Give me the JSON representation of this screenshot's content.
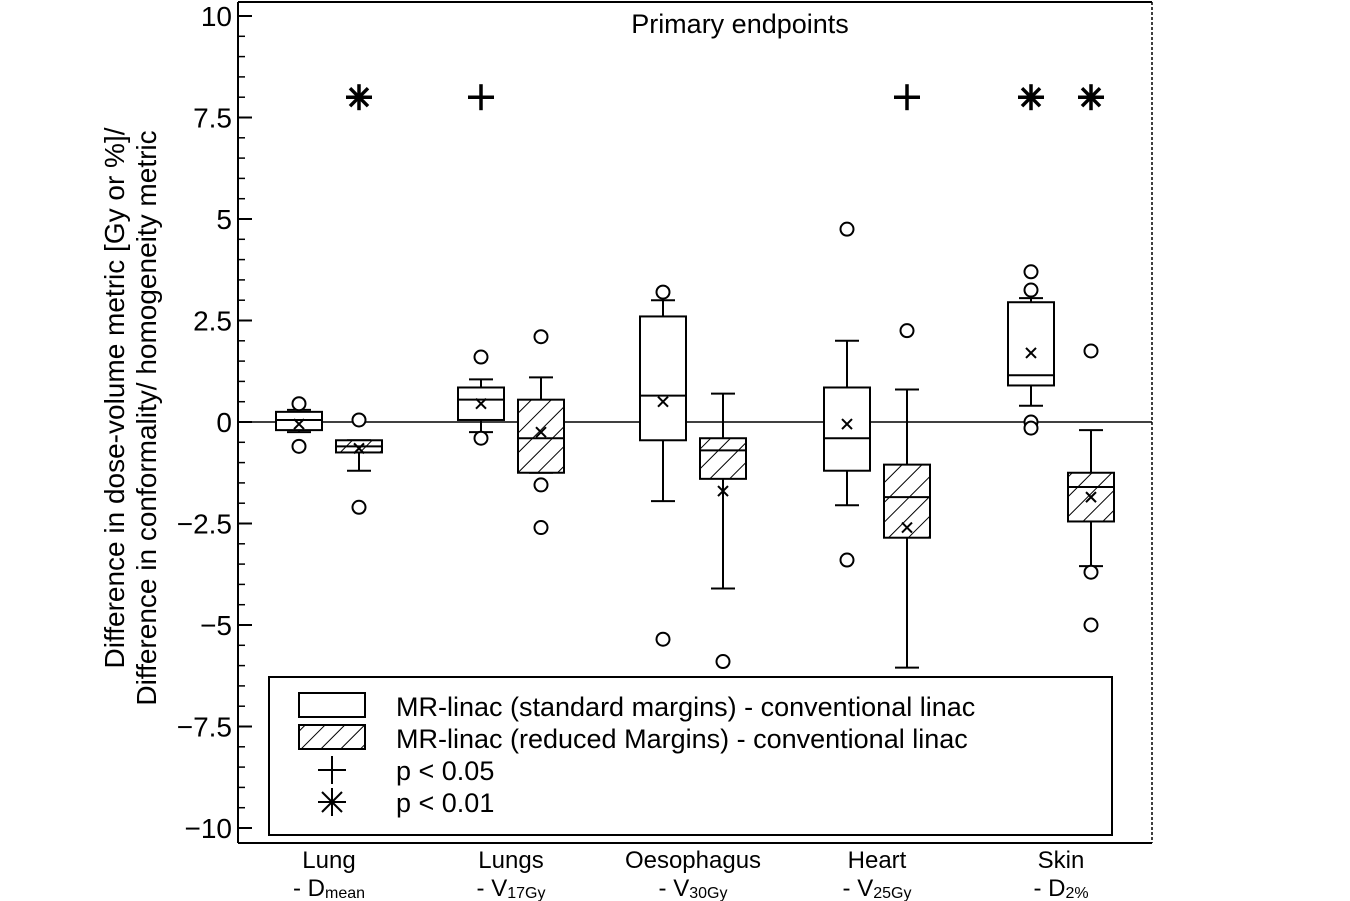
{
  "chart_data": {
    "type": "box",
    "title": "Primary endpoints",
    "ylabel_lines": [
      "Difference in dose-volume metric [Gy or %]/",
      "Difference in conformality/ homogeneity metric"
    ],
    "ylim": [
      -10.5,
      10.4
    ],
    "yticks": [
      {
        "value": 10,
        "label": "10"
      },
      {
        "value": 7.5,
        "label": "7.5"
      },
      {
        "value": 5,
        "label": "5"
      },
      {
        "value": 2.5,
        "label": "2.5"
      },
      {
        "value": 0,
        "label": "0"
      },
      {
        "value": -2.5,
        "label": "−2.5"
      },
      {
        "value": -5,
        "label": "−5"
      },
      {
        "value": -7.5,
        "label": "−7.5"
      },
      {
        "value": -10,
        "label": "−10"
      }
    ],
    "yminor_step": 0.5,
    "zero_line": true,
    "categories": [
      {
        "name": "Lung",
        "metric": "- D",
        "sub": "mean"
      },
      {
        "name": "Lungs",
        "metric": "- V",
        "sub": "17Gy"
      },
      {
        "name": "Oesophagus",
        "metric": "- V",
        "sub": "30Gy"
      },
      {
        "name": "Heart",
        "metric": "- V",
        "sub": "25Gy"
      },
      {
        "name": "Skin",
        "metric": "- D",
        "sub": "2%"
      }
    ],
    "series": [
      {
        "name": "MR-linac (standard margins) - conventional linac",
        "pattern": "open",
        "boxes": [
          {
            "q1": -0.2,
            "median": 0.05,
            "q3": 0.25,
            "whislo": -0.25,
            "whishi": 0.3,
            "mean": -0.05,
            "fliers": [
              0.45,
              -0.6
            ]
          },
          {
            "q1": 0.05,
            "median": 0.55,
            "q3": 0.85,
            "whislo": -0.25,
            "whishi": 1.05,
            "mean": 0.45,
            "fliers": [
              1.6,
              -0.4
            ]
          },
          {
            "q1": -0.45,
            "median": 0.65,
            "q3": 2.6,
            "whislo": -1.95,
            "whishi": 3.0,
            "mean": 0.5,
            "fliers": [
              3.2,
              -5.35
            ]
          },
          {
            "q1": -1.2,
            "median": -0.4,
            "q3": 0.85,
            "whislo": -2.05,
            "whishi": 2.0,
            "mean": -0.05,
            "fliers": [
              4.75,
              -3.4
            ]
          },
          {
            "q1": 0.9,
            "median": 1.15,
            "q3": 2.95,
            "whislo": 0.4,
            "whishi": 3.05,
            "mean": 1.7,
            "fliers": [
              3.7,
              3.25,
              0.0,
              -0.15
            ]
          }
        ]
      },
      {
        "name": "MR-linac (reduced Margins) - conventional linac",
        "pattern": "hatched",
        "boxes": [
          {
            "q1": -0.75,
            "median": -0.6,
            "q3": -0.45,
            "whislo": -1.2,
            "whishi": -0.45,
            "mean": -0.65,
            "fliers": [
              0.05,
              -2.1
            ]
          },
          {
            "q1": -1.25,
            "median": -0.4,
            "q3": 0.55,
            "whislo": -1.25,
            "whishi": 1.1,
            "mean": -0.25,
            "fliers": [
              2.1,
              -1.55,
              -2.6
            ]
          },
          {
            "q1": -1.4,
            "median": -0.7,
            "q3": -0.4,
            "whislo": -4.1,
            "whishi": 0.7,
            "mean": -1.7,
            "fliers": [
              -5.9
            ]
          },
          {
            "q1": -2.85,
            "median": -1.85,
            "q3": -1.05,
            "whislo": -6.05,
            "whishi": 0.8,
            "mean": -2.6,
            "fliers": [
              2.25
            ]
          },
          {
            "q1": -2.45,
            "median": -1.6,
            "q3": -1.25,
            "whislo": -3.55,
            "whishi": -0.2,
            "mean": -1.85,
            "fliers": [
              1.75,
              -3.7,
              -5.0
            ]
          }
        ]
      }
    ],
    "significance": [
      {
        "category": "Lung",
        "series": 1,
        "marker": "asterisk",
        "y": 8
      },
      {
        "category": "Lungs",
        "series": 0,
        "marker": "plus",
        "y": 8
      },
      {
        "category": "Heart",
        "series": 1,
        "marker": "plus",
        "y": 8
      },
      {
        "category": "Skin",
        "series": 0,
        "marker": "asterisk",
        "y": 8
      },
      {
        "category": "Skin",
        "series": 1,
        "marker": "asterisk",
        "y": 8
      }
    ],
    "legend": {
      "placement": "bottom",
      "items": [
        {
          "symbol": "open-box",
          "label": "MR-linac (standard margins) - conventional linac"
        },
        {
          "symbol": "hatched-box",
          "label": "MR-linac (reduced Margins) - conventional linac"
        },
        {
          "symbol": "plus",
          "label": "p < 0.05"
        },
        {
          "symbol": "asterisk",
          "label": "p < 0.01"
        }
      ]
    }
  }
}
